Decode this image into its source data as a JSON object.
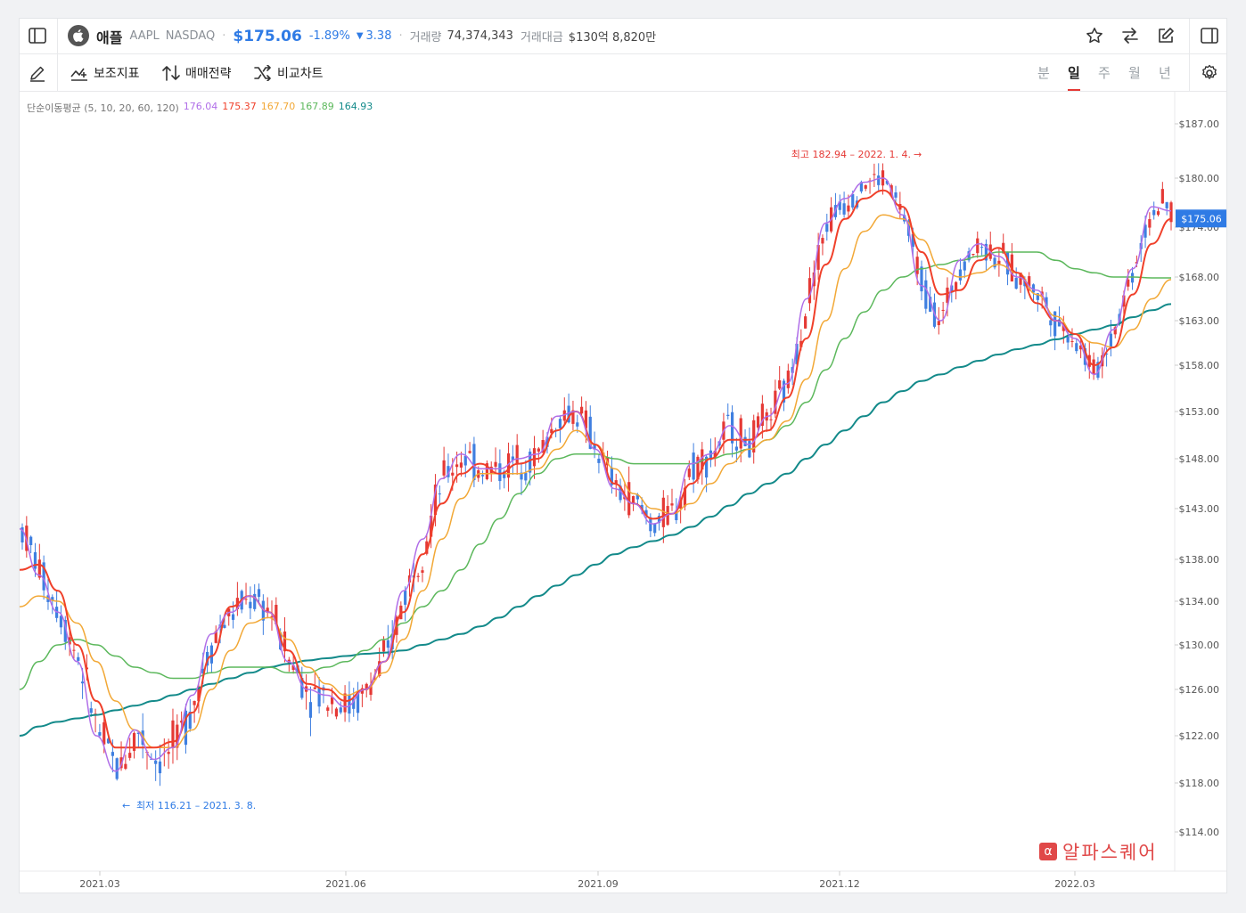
{
  "header": {
    "name": "애플",
    "ticker": "AAPL",
    "exchange": "NASDAQ",
    "separator": "·",
    "price": "$175.06",
    "change_pct": "-1.89%",
    "change_abs": "3.38",
    "volume_label": "거래량",
    "volume": "74,374,343",
    "amount_label": "거래대금",
    "amount": "$130억 8,820만"
  },
  "toolbar": {
    "indicator_label": "보조지표",
    "strategy_label": "매매전략",
    "compare_label": "비교차트",
    "periods": [
      "분",
      "일",
      "주",
      "월",
      "년"
    ],
    "active_period": "일"
  },
  "colors": {
    "up": "#e53935",
    "down": "#3f7fe0",
    "ma5": "#b06ee8",
    "ma10": "#f0402a",
    "ma20": "#f2a836",
    "ma60": "#5cb85c",
    "ma120": "#138a8a",
    "price_tag": "#2f7be5"
  },
  "watermark": "알파스퀘어",
  "chart_data": {
    "type": "candlestick",
    "y_ticks": [
      187,
      180,
      174,
      168,
      163,
      158,
      153,
      148,
      143,
      138,
      134,
      130,
      126,
      122,
      118,
      114
    ],
    "y_tick_labels": [
      "$187.00",
      "$180.00",
      "$174.00",
      "$168.00",
      "$163.00",
      "$158.00",
      "$153.00",
      "$148.00",
      "$143.00",
      "$138.00",
      "$134.00",
      "$130.00",
      "$126.00",
      "$122.00",
      "$118.00",
      "$114.00"
    ],
    "x_labels": [
      "2021.03",
      "2021.06",
      "2021.09",
      "2021.12",
      "2022.03"
    ],
    "last_price_label": "$175.06",
    "last_price": 175.06,
    "ma_legend": {
      "title": "단순이동평균 (5, 10, 20, 60, 120)",
      "values": [
        "176.04",
        "175.37",
        "167.70",
        "167.89",
        "164.93"
      ]
    },
    "annotations": {
      "high": "최고 182.94 – 2022. 1. 4.",
      "low": "최저 116.21 – 2021. 3. 8."
    },
    "high": 182.94,
    "low": 116.21,
    "series": [
      {
        "name": "MA5",
        "values": [
          141.0,
          136.5,
          133.0,
          128.5,
          122.0,
          119.0,
          122.5,
          120.0,
          121.0,
          125.5,
          131.0,
          133.0,
          134.5,
          133.0,
          128.5,
          126.0,
          125.5,
          124.5,
          126.0,
          128.5,
          135.0,
          140.0,
          146.0,
          148.5,
          147.0,
          147.0,
          148.0,
          148.5,
          152.5,
          153.0,
          149.0,
          145.0,
          143.5,
          141.5,
          142.5,
          147.5,
          148.5,
          151.5,
          149.5,
          152.5,
          156.0,
          165.5,
          174.5,
          177.5,
          179.5,
          180.0,
          175.5,
          167.0,
          163.0,
          170.0,
          172.0,
          170.5,
          168.0,
          166.5,
          163.0,
          161.0,
          157.0,
          162.0,
          169.0,
          176.5,
          176.0
        ]
      },
      {
        "name": "MA10",
        "values": [
          137.0,
          137.5,
          135.0,
          130.0,
          125.0,
          121.0,
          121.0,
          121.0,
          121.5,
          124.0,
          129.0,
          133.5,
          134.5,
          133.0,
          129.5,
          126.5,
          126.0,
          125.0,
          126.0,
          128.5,
          133.0,
          138.5,
          143.5,
          146.5,
          147.5,
          146.5,
          147.5,
          148.0,
          151.0,
          153.0,
          149.5,
          145.5,
          143.5,
          142.0,
          142.5,
          145.5,
          148.0,
          150.0,
          150.0,
          151.0,
          154.5,
          161.0,
          169.5,
          175.0,
          177.5,
          178.5,
          176.5,
          171.0,
          166.0,
          166.5,
          170.0,
          171.5,
          168.5,
          165.0,
          163.0,
          161.5,
          158.0,
          160.0,
          166.0,
          172.0,
          175.0
        ]
      },
      {
        "name": "MA20",
        "values": [
          133.5,
          134.5,
          134.0,
          132.0,
          128.5,
          125.0,
          122.5,
          121.0,
          121.0,
          122.5,
          126.0,
          129.5,
          132.0,
          132.5,
          130.5,
          128.0,
          126.5,
          125.5,
          126.0,
          127.5,
          130.5,
          135.0,
          140.0,
          144.0,
          146.5,
          146.5,
          146.5,
          147.0,
          149.0,
          151.0,
          149.5,
          147.0,
          144.5,
          143.0,
          142.5,
          143.5,
          145.5,
          147.5,
          149.0,
          150.0,
          152.0,
          156.5,
          163.0,
          169.0,
          173.5,
          175.5,
          175.0,
          172.5,
          169.0,
          168.0,
          168.5,
          169.5,
          168.5,
          166.0,
          163.5,
          161.5,
          160.5,
          160.0,
          162.0,
          165.5,
          167.7
        ]
      },
      {
        "name": "MA60",
        "values": [
          126.0,
          128.5,
          130.0,
          130.5,
          130.0,
          129.0,
          128.0,
          127.5,
          127.0,
          127.0,
          127.5,
          128.0,
          128.0,
          128.0,
          127.5,
          127.5,
          128.0,
          128.5,
          129.5,
          130.5,
          132.0,
          133.5,
          135.0,
          137.0,
          139.5,
          142.0,
          144.5,
          146.5,
          148.0,
          148.5,
          148.5,
          148.0,
          147.5,
          147.5,
          147.5,
          147.5,
          148.0,
          148.5,
          149.0,
          150.0,
          151.5,
          154.0,
          157.5,
          161.0,
          164.0,
          166.5,
          168.0,
          169.0,
          169.5,
          170.0,
          170.5,
          171.0,
          171.0,
          171.0,
          170.0,
          169.0,
          168.5,
          168.0,
          168.0,
          167.9,
          167.9
        ]
      },
      {
        "name": "MA120",
        "values": [
          122.0,
          122.8,
          123.2,
          123.5,
          123.8,
          124.2,
          124.6,
          125.0,
          125.5,
          126.0,
          126.5,
          127.0,
          127.5,
          128.0,
          128.3,
          128.6,
          128.8,
          129.0,
          129.2,
          129.3,
          129.5,
          130.0,
          130.5,
          131.0,
          131.7,
          132.5,
          133.5,
          134.5,
          135.5,
          136.5,
          137.5,
          138.5,
          139.2,
          139.8,
          140.4,
          141.2,
          142.2,
          143.3,
          144.5,
          145.5,
          146.5,
          148.0,
          149.5,
          151.0,
          152.5,
          154.0,
          155.2,
          156.3,
          157.0,
          157.8,
          158.5,
          159.2,
          159.8,
          160.3,
          160.9,
          161.5,
          162.0,
          162.5,
          163.4,
          164.2,
          164.9
        ]
      }
    ]
  }
}
